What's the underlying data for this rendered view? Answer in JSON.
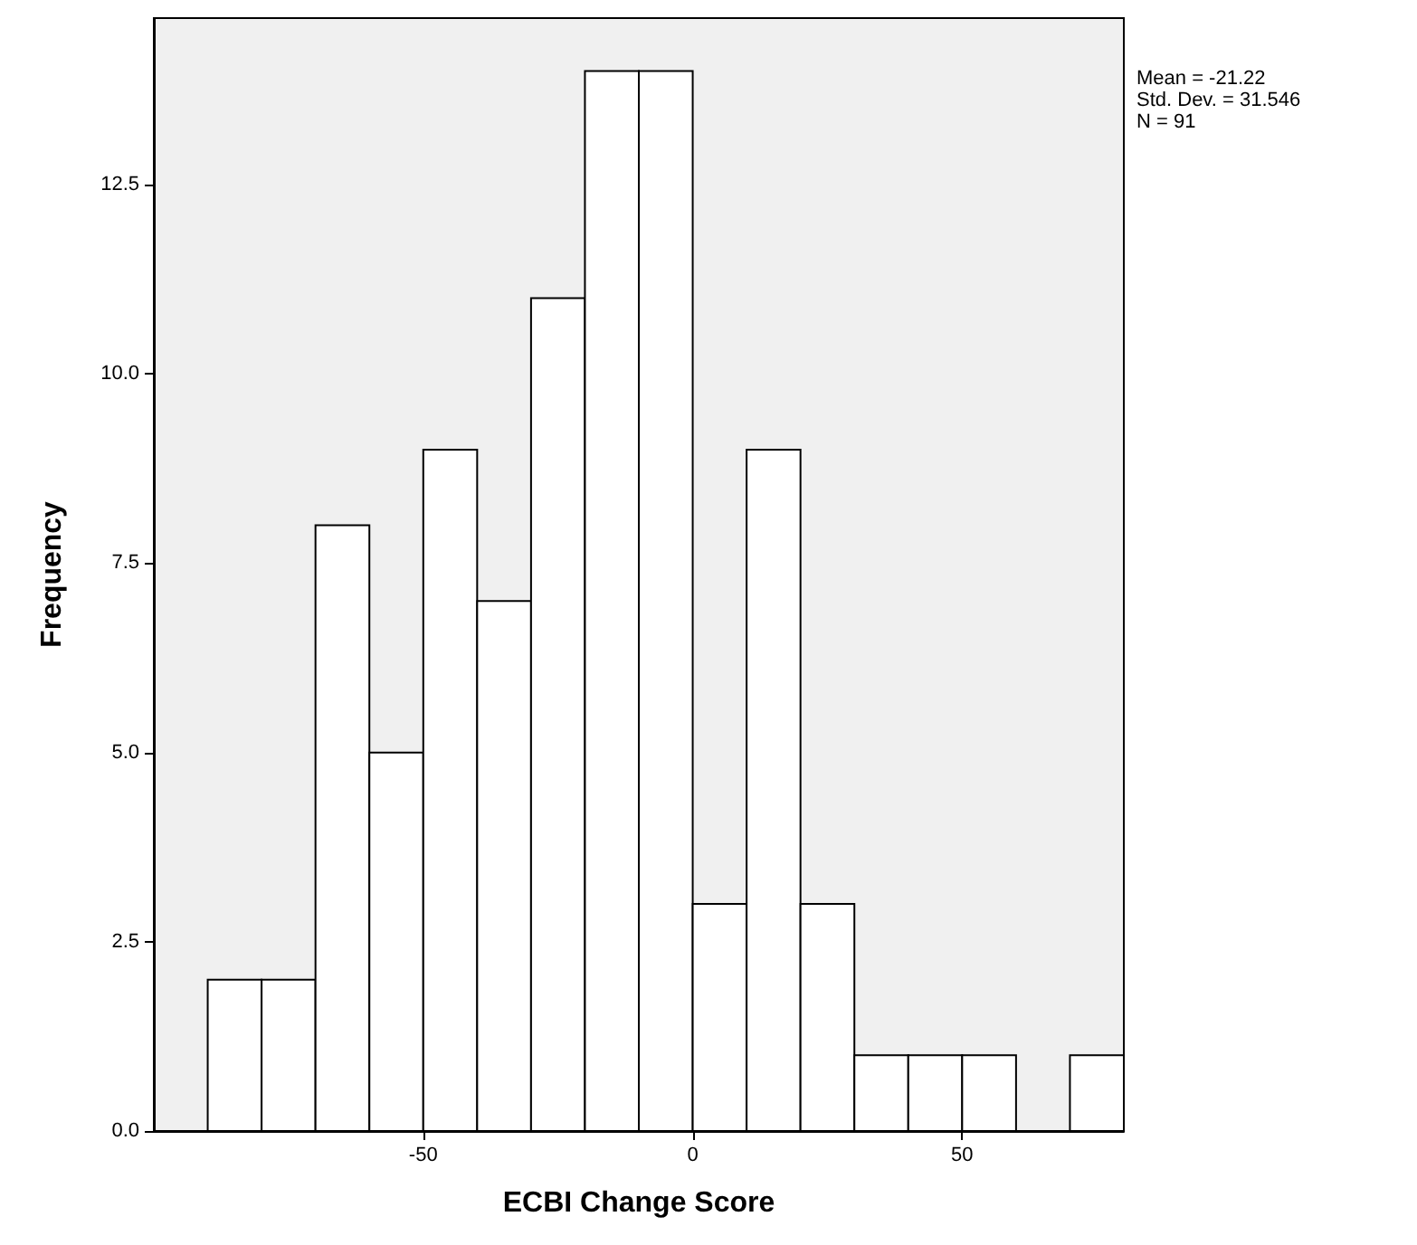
{
  "chart_data": {
    "type": "histogram",
    "xlabel": "ECBI Change Score",
    "ylabel": "Frequency",
    "bins": [
      -90,
      -80,
      -70,
      -60,
      -50,
      -40,
      -30,
      -20,
      -10,
      0,
      10,
      20,
      30,
      40,
      50,
      60,
      70,
      80
    ],
    "values": [
      2,
      2,
      8,
      5,
      9,
      7,
      11,
      14,
      14,
      3,
      9,
      3,
      1,
      1,
      1,
      0,
      1
    ],
    "color": "#ffffff",
    "xlim": [
      -100,
      80
    ],
    "xticks": [
      -50,
      0,
      50
    ],
    "ylim": [
      0,
      14.7
    ],
    "yticks": [
      {
        "value": 0,
        "label": "0.0"
      },
      {
        "value": 2.5,
        "label": "2.5"
      },
      {
        "value": 5,
        "label": "5.0"
      },
      {
        "value": 7.5,
        "label": "7.5"
      },
      {
        "value": 10,
        "label": "10.0"
      },
      {
        "value": 12.5,
        "label": "12.5"
      }
    ],
    "grid": false,
    "annotations": [
      "Mean = -21.22",
      "Std. Dev. = 31.546",
      "N = 91"
    ]
  }
}
